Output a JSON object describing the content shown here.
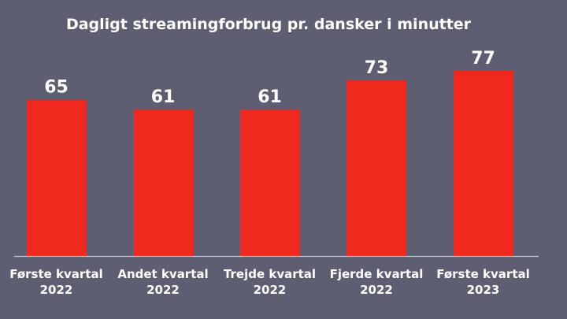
{
  "chart_data": {
    "type": "bar",
    "title": "Dagligt streamingforbrug  pr. dansker i minutter",
    "categories": [
      [
        "Første kvartal",
        "2022"
      ],
      [
        "Andet kvartal",
        "2022"
      ],
      [
        "Trejde kvartal",
        "2022"
      ],
      [
        "Fjerde kvartal",
        "2022"
      ],
      [
        "Første kvartal",
        "2023"
      ]
    ],
    "values": [
      65,
      61,
      61,
      73,
      77
    ],
    "data_labels": [
      "65",
      "61",
      "61",
      "73",
      "77"
    ],
    "ylim": [
      0,
      77
    ],
    "grid": false,
    "legend": "none",
    "bar_color": "#f0281e",
    "background_color": "#5d5e72",
    "baseline_color": "#c8c8d2"
  }
}
